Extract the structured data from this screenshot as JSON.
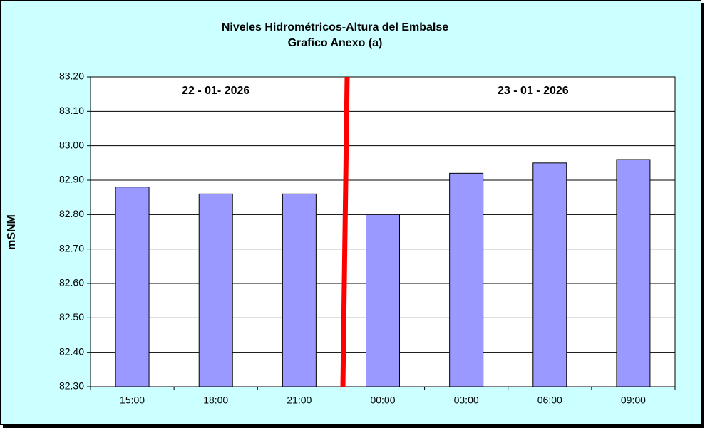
{
  "chart_data": {
    "type": "bar",
    "title": "Niveles Hidrométricos-Altura del Embalse",
    "subtitle": "Grafico Anexo (a)",
    "y_label": "mSNM",
    "categories": [
      "15:00",
      "18:00",
      "21:00",
      "00:00",
      "03:00",
      "06:00",
      "09:00"
    ],
    "values": [
      82.88,
      82.86,
      82.86,
      82.8,
      82.92,
      82.95,
      82.96
    ],
    "color": "#9999ff",
    "ylim": [
      82.3,
      83.2
    ],
    "yticks": [
      {
        "value": 82.3,
        "label": "82.30"
      },
      {
        "value": 82.4,
        "label": "82.40"
      },
      {
        "value": 82.5,
        "label": "82.50"
      },
      {
        "value": 82.6,
        "label": "82.60"
      },
      {
        "value": 82.7,
        "label": "82.70"
      },
      {
        "value": 82.8,
        "label": "82.80"
      },
      {
        "value": 82.9,
        "label": "82.90"
      },
      {
        "value": 83.0,
        "label": "83.00"
      },
      {
        "value": 83.1,
        "label": "83.10"
      },
      {
        "value": 83.2,
        "label": "83.20"
      }
    ],
    "grid": true,
    "annotations": [
      "22 - 01- 2026",
      "23 - 01 - 2026"
    ]
  }
}
